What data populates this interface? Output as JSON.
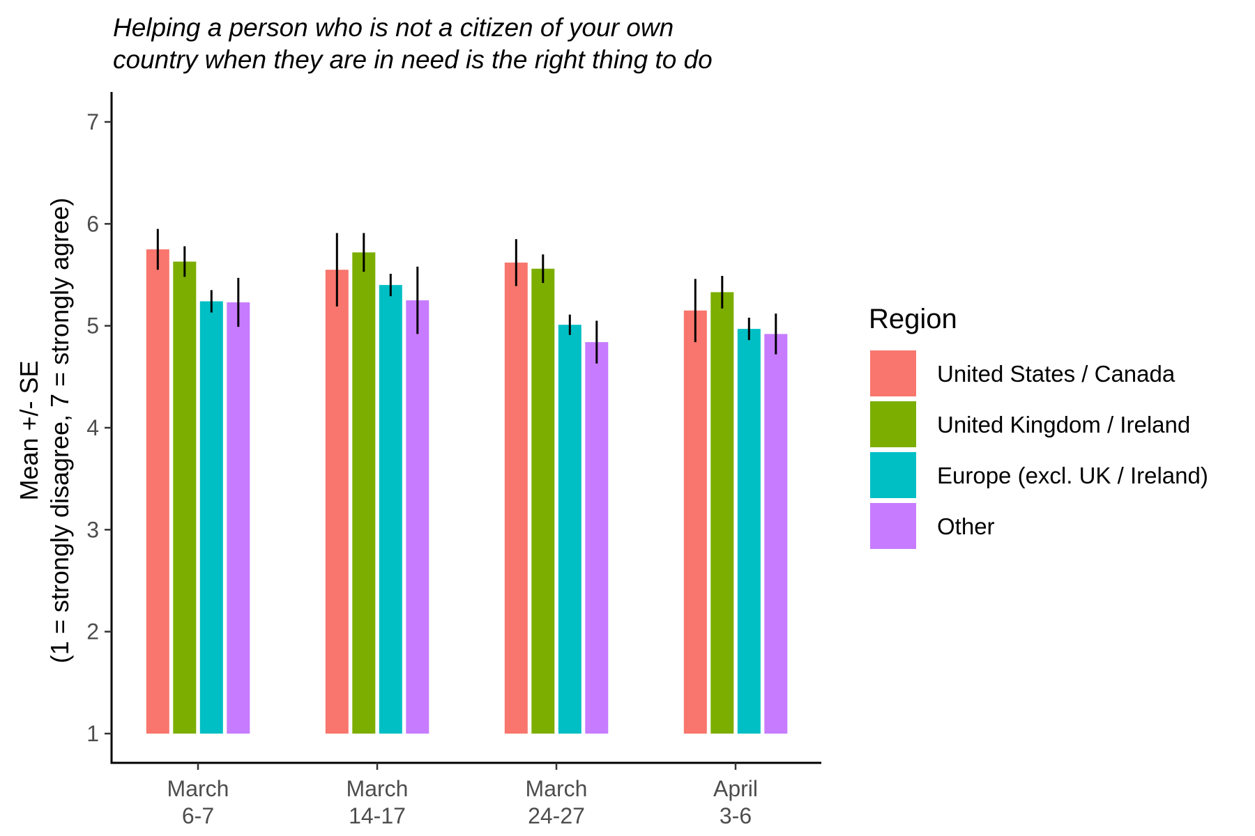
{
  "chart_data": {
    "type": "bar",
    "title": "Helping a person who is not a citizen of your own country when they are in need is the right thing to do",
    "title_lines": [
      "Helping a person who is not a citizen of your own",
      "country when they are in need is the right thing to do"
    ],
    "ylabel": "Mean +/- SE",
    "ylabel_sub": "(1 = strongly disagree, 7 = strongly agree)",
    "xlabel": "",
    "ylim": [
      1,
      7
    ],
    "yticks": [
      1,
      2,
      3,
      4,
      5,
      6,
      7
    ],
    "bar_base": 1,
    "grid": false,
    "legend_position": "right",
    "legend_title": "Region",
    "categories": [
      "March 6-7",
      "March 14-17",
      "March 24-27",
      "April 3-6"
    ],
    "category_labels": [
      [
        "March",
        "6-7"
      ],
      [
        "March",
        "14-17"
      ],
      [
        "March",
        "24-27"
      ],
      [
        "April",
        "3-6"
      ]
    ],
    "series": [
      {
        "name": "United States / Canada",
        "color": "#F8766D",
        "values": [
          5.75,
          5.55,
          5.62,
          5.15
        ],
        "se": [
          0.2,
          0.36,
          0.23,
          0.31
        ]
      },
      {
        "name": "United Kingdom / Ireland",
        "color": "#7CAE00",
        "values": [
          5.63,
          5.72,
          5.56,
          5.33
        ],
        "se": [
          0.15,
          0.19,
          0.14,
          0.16
        ]
      },
      {
        "name": "Europe (excl. UK / Ireland)",
        "color": "#00BFC4",
        "values": [
          5.24,
          5.4,
          5.01,
          4.97
        ],
        "se": [
          0.11,
          0.11,
          0.1,
          0.11
        ]
      },
      {
        "name": "Other",
        "color": "#C77CFF",
        "values": [
          5.23,
          5.25,
          4.84,
          4.92
        ],
        "se": [
          0.24,
          0.33,
          0.21,
          0.2
        ]
      }
    ]
  }
}
